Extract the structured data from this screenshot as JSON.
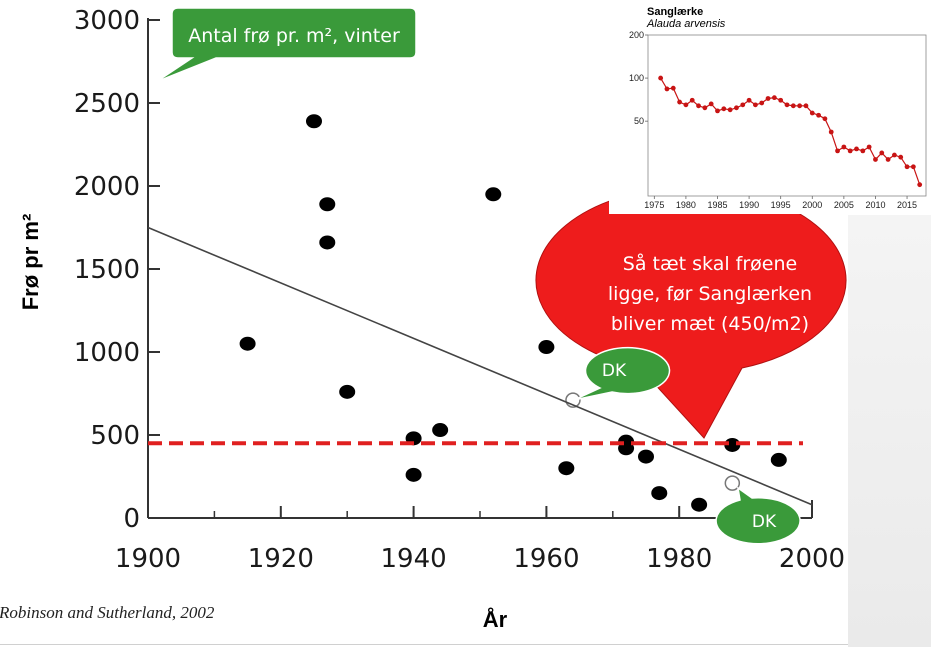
{
  "chart_data": [
    {
      "type": "scatter",
      "xlabel": "År",
      "ylabel": "Frø pr m²",
      "xlim": [
        1900,
        2000
      ],
      "ylim": [
        0,
        3000
      ],
      "xticks": [
        "1900",
        "1920",
        "1940",
        "1960",
        "1980",
        "2000"
      ],
      "yticks": [
        "0",
        "500",
        "1000",
        "1500",
        "2000",
        "2500",
        "3000"
      ],
      "grid": false,
      "series": [
        {
          "points": [
            {
              "x": 1915,
              "y": 1050
            },
            {
              "x": 1925,
              "y": 2390
            },
            {
              "x": 1927,
              "y": 1890
            },
            {
              "x": 1927,
              "y": 1660
            },
            {
              "x": 1930,
              "y": 760
            },
            {
              "x": 1940,
              "y": 480
            },
            {
              "x": 1940,
              "y": 260
            },
            {
              "x": 1944,
              "y": 530
            },
            {
              "x": 1952,
              "y": 1950
            },
            {
              "x": 1960,
              "y": 1030
            },
            {
              "x": 1963,
              "y": 300
            },
            {
              "x": 1972,
              "y": 460
            },
            {
              "x": 1972,
              "y": 420
            },
            {
              "x": 1975,
              "y": 370
            },
            {
              "x": 1977,
              "y": 150
            },
            {
              "x": 1983,
              "y": 80
            },
            {
              "x": 1988,
              "y": 440
            },
            {
              "x": 1995,
              "y": 350
            }
          ]
        },
        {
          "points": [
            {
              "x": 1964,
              "y": 710
            },
            {
              "x": 1988,
              "y": 210
            }
          ]
        }
      ],
      "trend_line": {
        "x": [
          1900,
          2000
        ],
        "y": [
          1750,
          80
        ]
      },
      "reference_line": {
        "y": 450,
        "color": "#e02020",
        "style": "dashed"
      },
      "annotations": [
        {
          "text": "Antal frø pr. m², vinter",
          "color": "#3a9a3a"
        },
        {
          "text": "Så tæt skal frøene",
          "color": "#ee1c1c"
        },
        {
          "text": "ligge, før Sanglærken",
          "color": "#ee1c1c"
        },
        {
          "text": "bliver mæt (450/m2)",
          "color": "#ee1c1c"
        },
        {
          "text": "DK",
          "color": "#3a9a3a"
        },
        {
          "text": "DK",
          "color": "#3a9a3a"
        }
      ],
      "citation": "Robinson and Sutherland, 2002"
    },
    {
      "type": "line",
      "title": "Sanglærke",
      "subtitle": "Alauda arvensis",
      "xlim": [
        1974,
        2018
      ],
      "ylim": [
        15,
        200
      ],
      "yscale": "log",
      "xticks": [
        "1975",
        "1980",
        "1985",
        "1990",
        "1995",
        "2000",
        "2005",
        "2010",
        "2015"
      ],
      "yticks": [
        "50",
        "100",
        "200"
      ],
      "color": "#c81414",
      "x": [
        1976,
        1977,
        1978,
        1979,
        1980,
        1981,
        1982,
        1983,
        1984,
        1985,
        1986,
        1987,
        1988,
        1989,
        1990,
        1991,
        1992,
        1993,
        1994,
        1995,
        1996,
        1997,
        1998,
        1999,
        2000,
        2001,
        2002,
        2003,
        2004,
        2005,
        2006,
        2007,
        2008,
        2009,
        2010,
        2011,
        2012,
        2013,
        2014,
        2015,
        2016,
        2017
      ],
      "y": [
        100,
        84,
        85,
        68,
        65,
        70,
        64,
        62,
        66,
        59,
        61,
        60,
        62,
        65,
        70,
        65,
        67,
        72,
        73,
        70,
        65,
        64,
        64,
        64,
        57,
        55,
        52,
        42,
        31,
        33,
        31,
        32,
        31,
        33,
        27,
        30,
        27,
        29,
        28,
        24,
        24,
        18
      ]
    }
  ]
}
